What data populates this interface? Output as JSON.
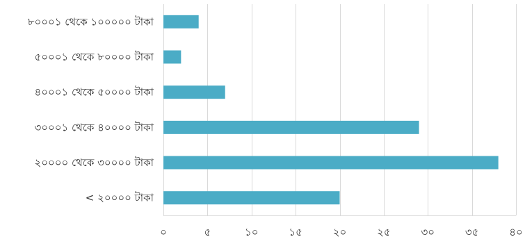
{
  "chart_data": {
    "type": "bar",
    "orientation": "horizontal",
    "categories": [
      "৮০০০১ থেকে ১০০০০০ টাকা",
      "৫০০০১ থেকে ৮০০০০ টাকা",
      "৪০০০১ থেকে ৫০০০০ টাকা",
      "৩০০০১ থেকে ৪০০০০ টাকা",
      "২০০০০ থেকে ৩০০০০ টাকা",
      "< ২০০০০ টাকা"
    ],
    "values": [
      4,
      2,
      7,
      29,
      38,
      20
    ],
    "xlim": [
      0,
      40
    ],
    "x_ticks": [
      0,
      5,
      10,
      15,
      20,
      25,
      30,
      35,
      40
    ],
    "x_tick_labels": [
      "০",
      "৫",
      "১০",
      "১৫",
      "২০",
      "২৫",
      "৩০",
      "৩৫",
      "৪০"
    ],
    "grid": true,
    "legend": "none",
    "bar_color": "#4bacc6",
    "title": "",
    "xlabel": "",
    "ylabel": ""
  }
}
